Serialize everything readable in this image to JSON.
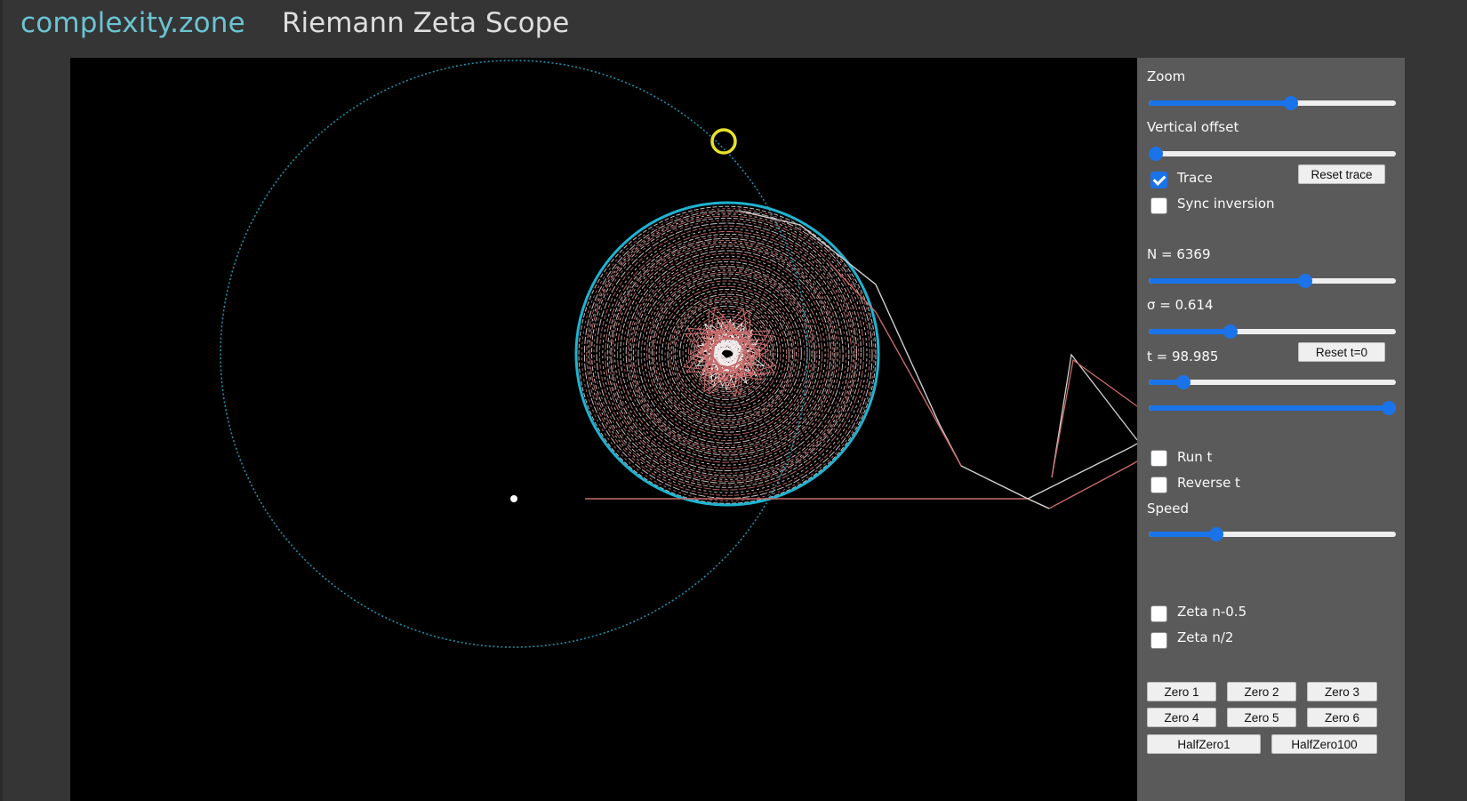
{
  "header": {
    "brand": "complexity.zone",
    "title": "Riemann Zeta Scope"
  },
  "controls": {
    "zoom": {
      "label": "Zoom",
      "value": 0.58
    },
    "vertical_offset": {
      "label": "Vertical offset",
      "value": 0.0
    },
    "trace": {
      "label": "Trace",
      "checked": true
    },
    "reset_trace": "Reset trace",
    "sync_inversion": {
      "label": "Sync inversion",
      "checked": false
    },
    "n": {
      "label": "N = 6369",
      "value": 0.64
    },
    "sigma": {
      "label": "σ = 0.614",
      "value": 0.32
    },
    "t": {
      "label": "t = 98.985",
      "value": 0.12
    },
    "reset_t": "Reset t=0",
    "t_fine": {
      "value": 1.0
    },
    "run_t": {
      "label": "Run t",
      "checked": false
    },
    "reverse_t": {
      "label": "Reverse t",
      "checked": false
    },
    "speed": {
      "label": "Speed",
      "value": 0.26
    },
    "zeta_n_minus_half": {
      "label": "Zeta n-0.5",
      "checked": false
    },
    "zeta_n_half": {
      "label": "Zeta n/2",
      "checked": false
    },
    "zero_buttons": [
      "Zero 1",
      "Zero 2",
      "Zero 3",
      "Zero 4",
      "Zero 5",
      "Zero 6"
    ],
    "half_zero_buttons": [
      "HalfZero1",
      "HalfZero100"
    ]
  },
  "colors": {
    "background": "#353535",
    "canvas": "#000000",
    "panel": "#5a5a5a",
    "brand": "#6cc4d2",
    "accent": "#1a73e8",
    "circle": "#1fb3d0",
    "marker": "#e8e22a",
    "spiral_light": "#f2eaea",
    "spiral_red": "#c86a6a"
  }
}
